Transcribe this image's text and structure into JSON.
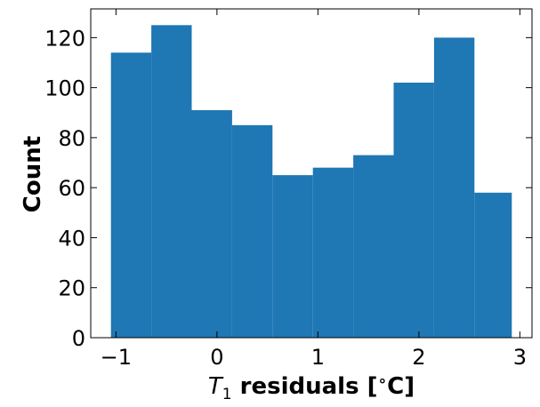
{
  "chart_data": {
    "type": "bar",
    "subtype": "histogram",
    "bin_edges": [
      -1.05,
      -0.65,
      -0.25,
      0.15,
      0.55,
      0.95,
      1.35,
      1.75,
      2.15,
      2.55,
      2.92
    ],
    "counts": [
      114,
      125,
      91,
      85,
      65,
      68,
      73,
      102,
      120,
      58
    ],
    "bar_color": "#1f77b4",
    "xlabel_symbol": "T",
    "xlabel_subscript": "1",
    "xlabel_rest": " residuals [",
    "xlabel_degree": "∘",
    "xlabel_unit": "C]",
    "ylabel": "Count",
    "xlim": [
      -1.25,
      3.12
    ],
    "ylim": [
      0,
      131.5
    ],
    "xticks": [
      -1,
      0,
      1,
      2,
      3
    ],
    "xtick_labels": [
      "−1",
      "0",
      "1",
      "2",
      "3"
    ],
    "yticks": [
      0,
      20,
      40,
      60,
      80,
      100,
      120
    ],
    "ytick_labels": [
      "0",
      "20",
      "40",
      "60",
      "80",
      "100",
      "120"
    ],
    "tick_direction": "in",
    "ticks_on_all_sides": true,
    "grid": false
  }
}
